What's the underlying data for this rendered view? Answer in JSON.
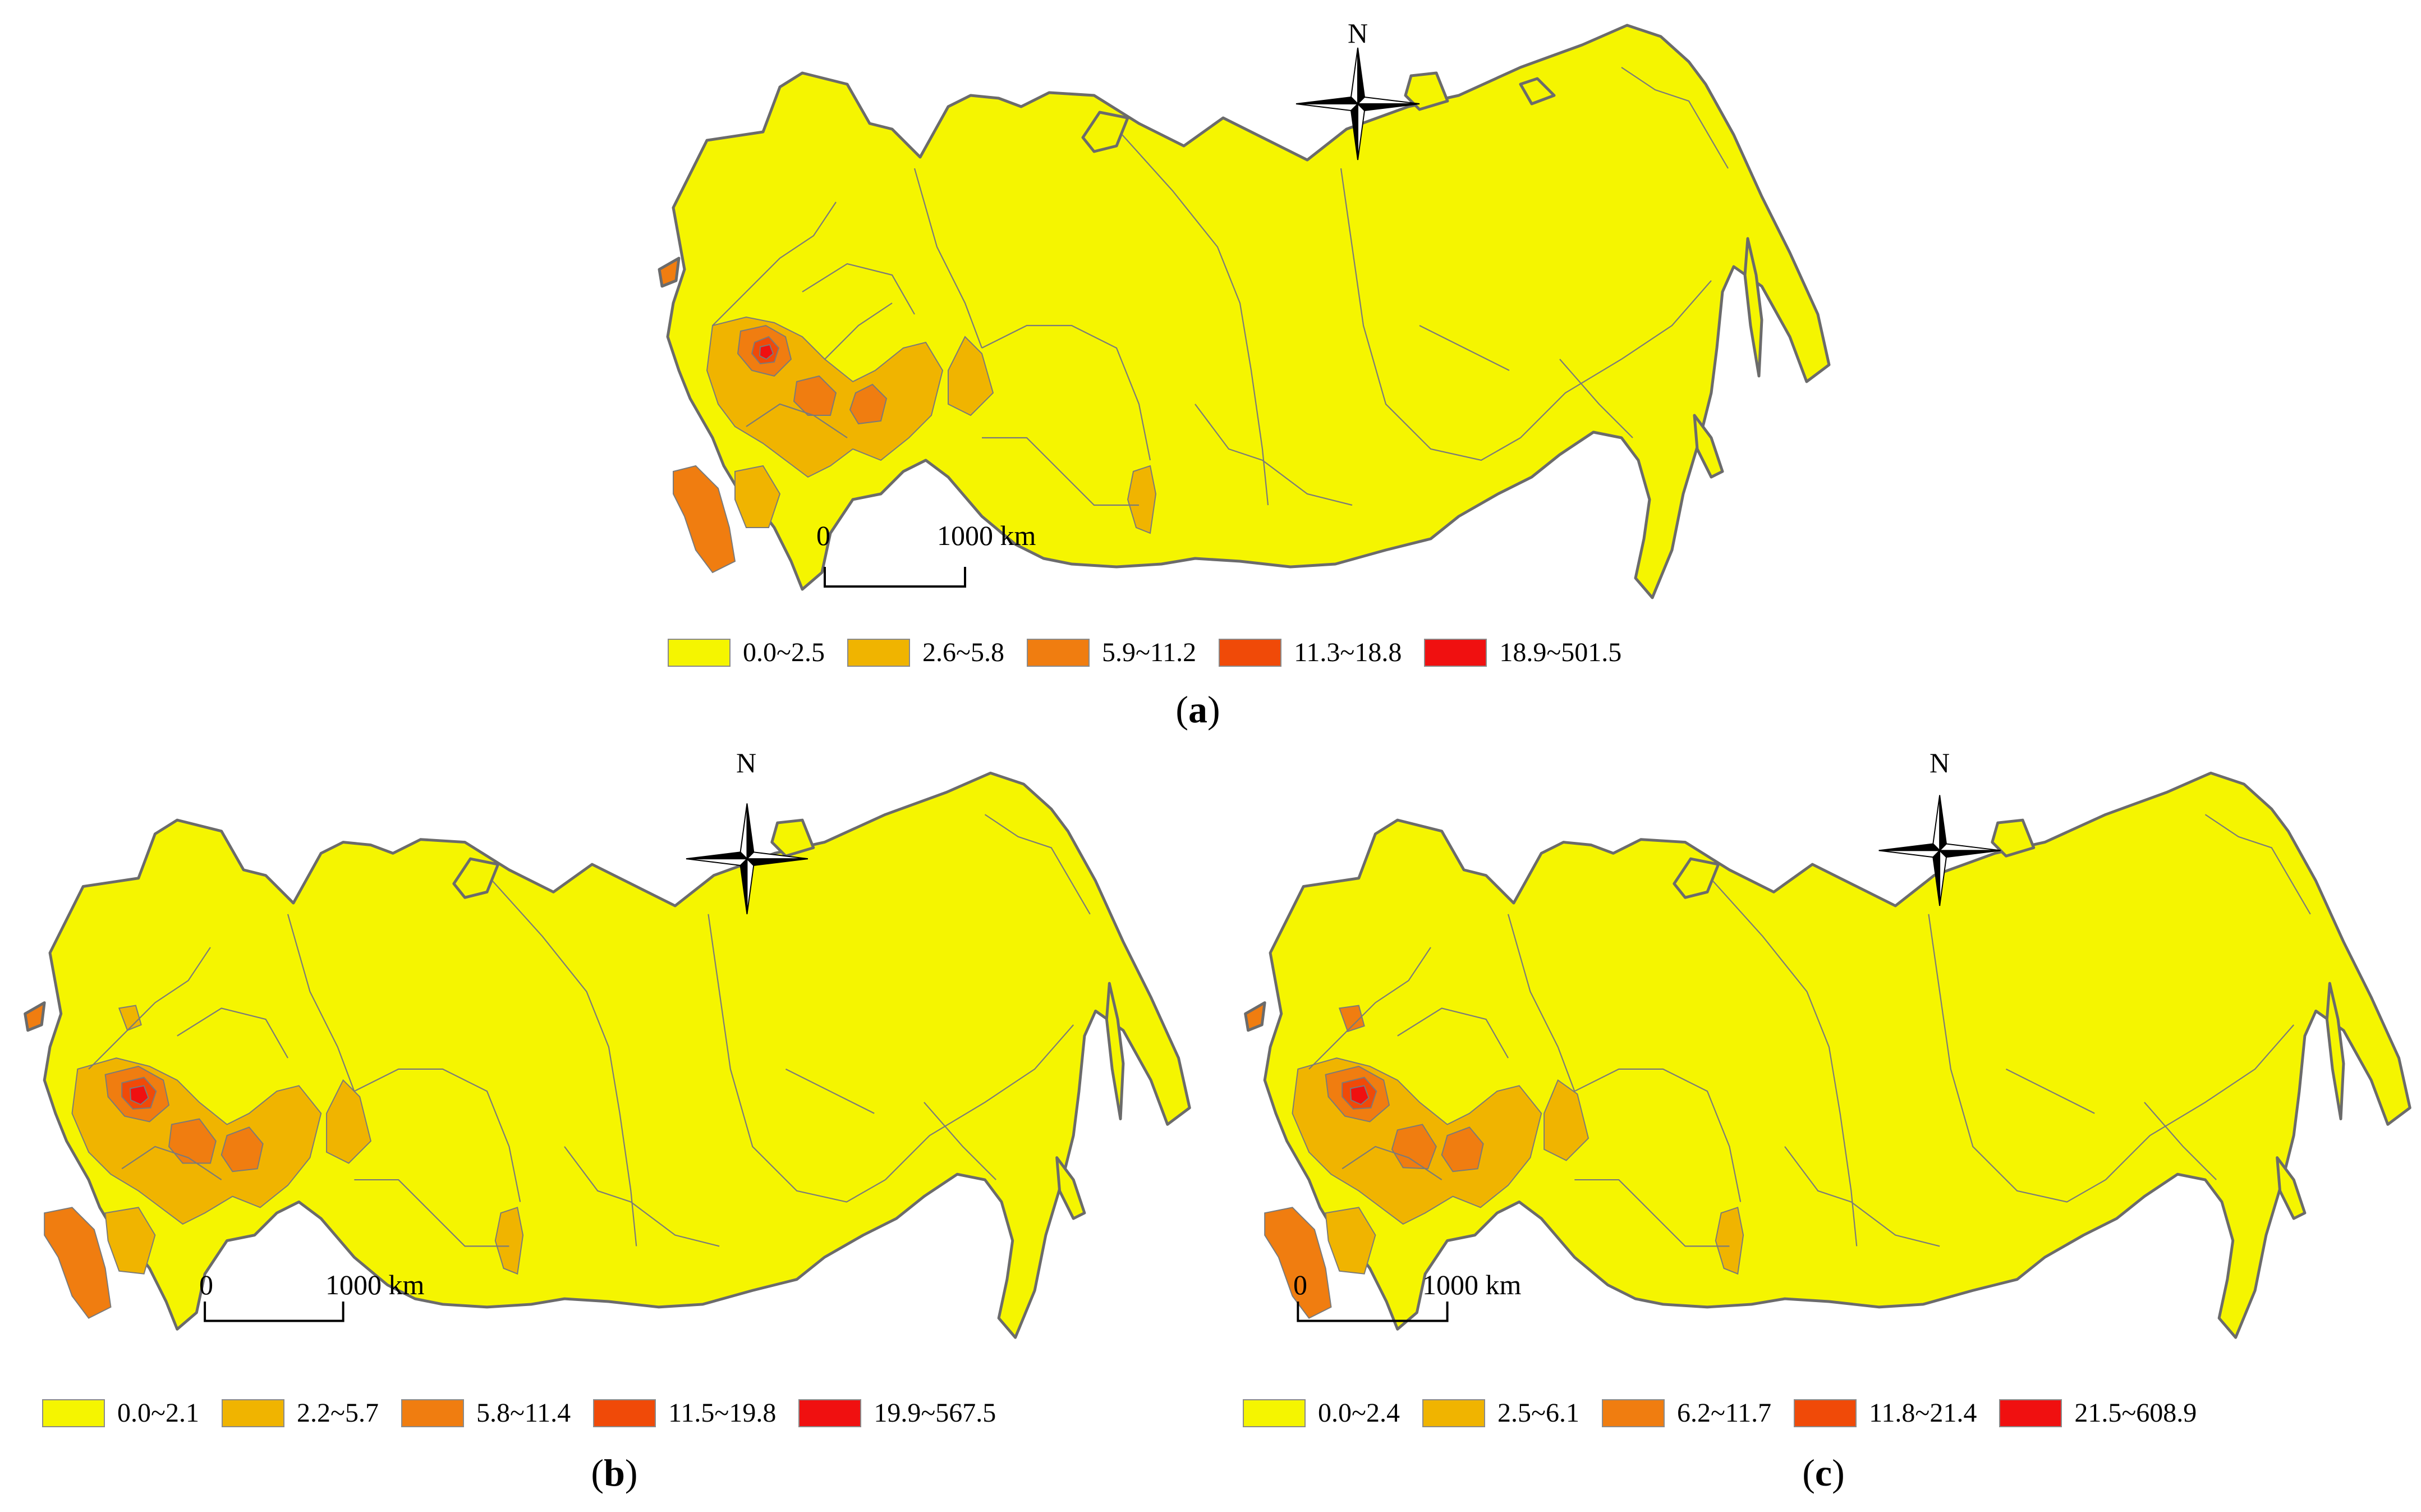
{
  "panels": [
    {
      "caption_open": "(",
      "caption_letter": "a",
      "caption_close": ")",
      "scale": {
        "zero": "0",
        "distance": "1000 km"
      },
      "north": "N",
      "legend": [
        {
          "label": "0.0~2.5",
          "color": "#f5f500"
        },
        {
          "label": "2.6~5.8",
          "color": "#f0b400"
        },
        {
          "label": "5.9~11.2",
          "color": "#f07d10"
        },
        {
          "label": "11.3~18.8",
          "color": "#f04a08"
        },
        {
          "label": "18.9~501.5",
          "color": "#f01010"
        }
      ]
    },
    {
      "caption_open": "(",
      "caption_letter": "b",
      "caption_close": ")",
      "scale": {
        "zero": "0",
        "distance": "1000 km"
      },
      "north": "N",
      "legend": [
        {
          "label": "0.0~2.1",
          "color": "#f5f500"
        },
        {
          "label": "2.2~5.7",
          "color": "#f0b400"
        },
        {
          "label": "5.8~11.4",
          "color": "#f07d10"
        },
        {
          "label": "11.5~19.8",
          "color": "#f04a08"
        },
        {
          "label": "19.9~567.5",
          "color": "#f01010"
        }
      ]
    },
    {
      "caption_open": "(",
      "caption_letter": "c",
      "caption_close": ")",
      "scale": {
        "zero": "0",
        "distance": "1000 km"
      },
      "north": "N",
      "legend": [
        {
          "label": "0.0~2.4",
          "color": "#f5f500"
        },
        {
          "label": "2.5~6.1",
          "color": "#f0b400"
        },
        {
          "label": "6.2~11.7",
          "color": "#f07d10"
        },
        {
          "label": "11.8~21.4",
          "color": "#f04a08"
        },
        {
          "label": "21.5~608.9",
          "color": "#f01010"
        }
      ]
    }
  ],
  "colors": {
    "base": "#f5f500",
    "outline": "#6b6b6b",
    "internal_border": "#7a7a7a"
  },
  "icons": {
    "compass": "north-arrow-compass-icon"
  }
}
